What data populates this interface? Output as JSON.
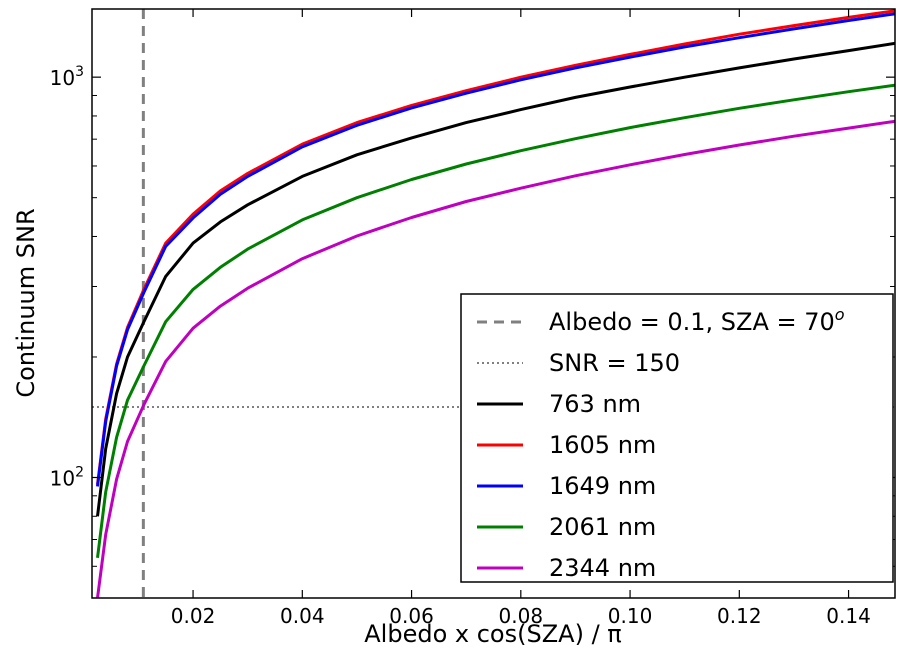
{
  "chart_data": {
    "type": "line",
    "xlabel": "Albedo x cos(SZA) / π",
    "ylabel": "Continuum SNR",
    "xlim": [
      0.0015,
      0.1485
    ],
    "ylim": [
      50,
      1480
    ],
    "y_scale": "log",
    "x_ticks": [
      0.02,
      0.04,
      0.06,
      0.08,
      0.1,
      0.12,
      0.14
    ],
    "x_tick_labels": [
      "0.02",
      "0.04",
      "0.06",
      "0.08",
      "0.10",
      "0.12",
      "0.14"
    ],
    "y_major_ticks": [
      {
        "value": 100,
        "base": "10",
        "exp": "2"
      },
      {
        "value": 1000,
        "base": "10",
        "exp": "3"
      }
    ],
    "y_minor_ticks": [
      60,
      70,
      80,
      90,
      200,
      300,
      400,
      500,
      600,
      700,
      800,
      900
    ],
    "grid": false,
    "legend_position": "lower-right",
    "reference_lines": [
      {
        "name": "Albedo = 0.1, SZA = 70",
        "name_sup": "o",
        "orientation": "vertical",
        "x": 0.0109,
        "style": "dashed",
        "color": "#808080"
      },
      {
        "name": "SNR = 150",
        "orientation": "horizontal",
        "y": 150,
        "style": "dotted",
        "color": "#808080"
      }
    ],
    "x": [
      0.0025,
      0.004,
      0.006,
      0.008,
      0.011,
      0.015,
      0.02,
      0.025,
      0.03,
      0.04,
      0.05,
      0.06,
      0.07,
      0.08,
      0.09,
      0.1,
      0.11,
      0.12,
      0.13,
      0.14,
      0.1485
    ],
    "series": [
      {
        "name": "763 nm",
        "color": "#000000",
        "values": [
          80,
          118,
          162,
          200,
          245,
          318,
          385,
          435,
          480,
          565,
          640,
          705,
          770,
          830,
          890,
          945,
          1000,
          1055,
          1110,
          1165,
          1215
        ]
      },
      {
        "name": "1605 nm",
        "color": "#ff0000",
        "values": [
          96,
          140,
          192,
          237,
          295,
          385,
          455,
          520,
          575,
          680,
          770,
          850,
          925,
          1000,
          1070,
          1140,
          1210,
          1280,
          1345,
          1410,
          1465
        ]
      },
      {
        "name": "1649 nm",
        "color": "#0000ff",
        "values": [
          95,
          138,
          190,
          234,
          290,
          378,
          445,
          510,
          565,
          670,
          758,
          838,
          912,
          985,
          1055,
          1122,
          1190,
          1255,
          1320,
          1385,
          1440
        ]
      },
      {
        "name": "2061 nm",
        "color": "#008000",
        "values": [
          63,
          92,
          126,
          156,
          190,
          245,
          295,
          335,
          372,
          440,
          500,
          555,
          607,
          655,
          702,
          748,
          792,
          836,
          878,
          920,
          955
        ]
      },
      {
        "name": "2344 nm",
        "color": "#bf00bf",
        "values": [
          50,
          72,
          99,
          123,
          152,
          195,
          236,
          268,
          297,
          352,
          401,
          446,
          489,
          528,
          567,
          604,
          641,
          677,
          712,
          746,
          776
        ]
      }
    ]
  }
}
